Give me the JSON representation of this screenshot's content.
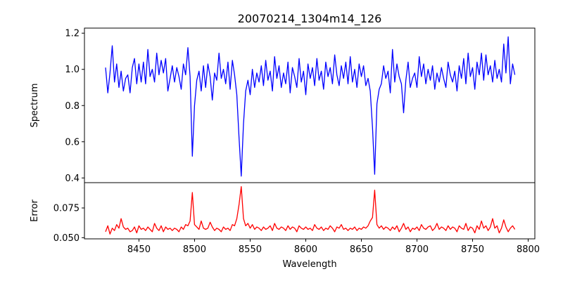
{
  "chart_data": [
    {
      "type": "line",
      "title": "20070214_1304m14_126",
      "xlabel": "",
      "ylabel": "Spectrum",
      "xlim": [
        8401,
        8806
      ],
      "ylim": [
        0.374,
        1.228
      ],
      "yticks": [
        "0.4",
        "0.6",
        "0.8",
        "1.0",
        "1.2"
      ],
      "ytick_values": [
        0.4,
        0.6,
        0.8,
        1.0,
        1.2
      ],
      "color": "#0000ff",
      "x_start": 8420,
      "x_step": 2,
      "values": [
        1.01,
        0.87,
        0.98,
        1.13,
        0.93,
        1.03,
        0.9,
        0.99,
        0.88,
        0.95,
        0.97,
        0.87,
        1.01,
        1.06,
        0.92,
        1.03,
        0.93,
        1.04,
        0.92,
        1.11,
        0.96,
        1.0,
        0.93,
        1.09,
        0.97,
        1.05,
        0.98,
        1.06,
        0.88,
        0.95,
        1.02,
        0.93,
        1.01,
        0.96,
        0.89,
        1.03,
        0.97,
        1.12,
        0.96,
        0.52,
        0.8,
        0.94,
        0.99,
        0.88,
        1.02,
        0.9,
        1.03,
        0.96,
        0.83,
        0.98,
        0.94,
        1.09,
        0.95,
        1.0,
        0.92,
        1.04,
        0.89,
        1.05,
        0.97,
        0.86,
        0.62,
        0.41,
        0.7,
        0.88,
        0.94,
        0.86,
        1.0,
        0.9,
        0.98,
        0.93,
        1.02,
        0.91,
        1.05,
        0.94,
        0.99,
        0.88,
        1.07,
        0.95,
        1.02,
        0.9,
        0.98,
        0.92,
        1.04,
        0.87,
        1.01,
        0.96,
        0.9,
        1.06,
        0.93,
        0.99,
        0.86,
        1.03,
        0.95,
        1.01,
        0.91,
        1.06,
        0.94,
        0.99,
        0.89,
        1.04,
        0.96,
        1.01,
        0.92,
        1.08,
        0.97,
        0.91,
        1.02,
        0.95,
        1.04,
        0.92,
        1.07,
        0.93,
        1.0,
        0.9,
        1.03,
        0.96,
        1.02,
        0.91,
        0.95,
        0.88,
        0.68,
        0.42,
        0.81,
        0.89,
        0.92,
        1.02,
        0.95,
        0.99,
        0.87,
        1.11,
        0.93,
        1.03,
        0.96,
        0.92,
        0.76,
        0.94,
        1.04,
        0.9,
        0.95,
        0.98,
        0.9,
        1.07,
        0.96,
        1.03,
        0.92,
        1.0,
        0.94,
        1.02,
        0.89,
        0.98,
        0.93,
        1.01,
        0.95,
        0.9,
        1.04,
        0.97,
        0.93,
        0.99,
        0.88,
        1.02,
        0.95,
        1.06,
        0.92,
        1.09,
        0.96,
        1.01,
        0.89,
        1.04,
        0.97,
        1.09,
        0.94,
        1.08,
        0.97,
        1.02,
        0.93,
        1.05,
        0.95,
        1.0,
        0.93,
        1.14,
        0.98,
        1.18,
        0.92,
        1.03,
        0.97
      ]
    },
    {
      "type": "line",
      "xlabel": "Wavelength",
      "ylabel": "Error",
      "xlim": [
        8401,
        8806
      ],
      "ylim": [
        0.049,
        0.0963
      ],
      "xticks": [
        "8450",
        "8500",
        "8550",
        "8600",
        "8650",
        "8700",
        "8750",
        "8800"
      ],
      "xtick_values": [
        8450,
        8500,
        8550,
        8600,
        8650,
        8700,
        8750,
        8800
      ],
      "yticks": [
        "0.050",
        "0.075"
      ],
      "ytick_values": [
        0.05,
        0.075
      ],
      "color": "#ff0000",
      "x_start": 8420,
      "x_step": 2,
      "values": [
        0.055,
        0.06,
        0.053,
        0.058,
        0.056,
        0.061,
        0.058,
        0.066,
        0.059,
        0.057,
        0.058,
        0.055,
        0.056,
        0.059,
        0.054,
        0.06,
        0.057,
        0.058,
        0.056,
        0.059,
        0.057,
        0.055,
        0.062,
        0.058,
        0.056,
        0.06,
        0.055,
        0.059,
        0.057,
        0.058,
        0.056,
        0.058,
        0.057,
        0.055,
        0.059,
        0.057,
        0.061,
        0.06,
        0.064,
        0.088,
        0.061,
        0.059,
        0.057,
        0.064,
        0.058,
        0.057,
        0.058,
        0.063,
        0.059,
        0.056,
        0.058,
        0.057,
        0.055,
        0.059,
        0.057,
        0.058,
        0.056,
        0.061,
        0.06,
        0.066,
        0.078,
        0.093,
        0.066,
        0.06,
        0.062,
        0.058,
        0.061,
        0.057,
        0.059,
        0.058,
        0.056,
        0.059,
        0.057,
        0.058,
        0.06,
        0.056,
        0.062,
        0.058,
        0.057,
        0.059,
        0.058,
        0.056,
        0.06,
        0.057,
        0.059,
        0.058,
        0.055,
        0.06,
        0.058,
        0.057,
        0.059,
        0.057,
        0.058,
        0.056,
        0.061,
        0.058,
        0.057,
        0.059,
        0.056,
        0.058,
        0.057,
        0.06,
        0.058,
        0.055,
        0.059,
        0.058,
        0.061,
        0.057,
        0.058,
        0.056,
        0.058,
        0.057,
        0.059,
        0.056,
        0.058,
        0.057,
        0.059,
        0.058,
        0.06,
        0.064,
        0.067,
        0.09,
        0.061,
        0.058,
        0.06,
        0.057,
        0.059,
        0.058,
        0.056,
        0.059,
        0.057,
        0.06,
        0.055,
        0.058,
        0.062,
        0.057,
        0.059,
        0.055,
        0.058,
        0.057,
        0.059,
        0.056,
        0.061,
        0.058,
        0.057,
        0.059,
        0.06,
        0.056,
        0.058,
        0.062,
        0.057,
        0.059,
        0.058,
        0.056,
        0.06,
        0.057,
        0.059,
        0.058,
        0.055,
        0.06,
        0.058,
        0.057,
        0.062,
        0.056,
        0.059,
        0.058,
        0.054,
        0.06,
        0.057,
        0.064,
        0.058,
        0.06,
        0.056,
        0.059,
        0.066,
        0.058,
        0.06,
        0.054,
        0.058,
        0.065,
        0.059,
        0.055,
        0.058,
        0.06,
        0.057
      ]
    }
  ]
}
